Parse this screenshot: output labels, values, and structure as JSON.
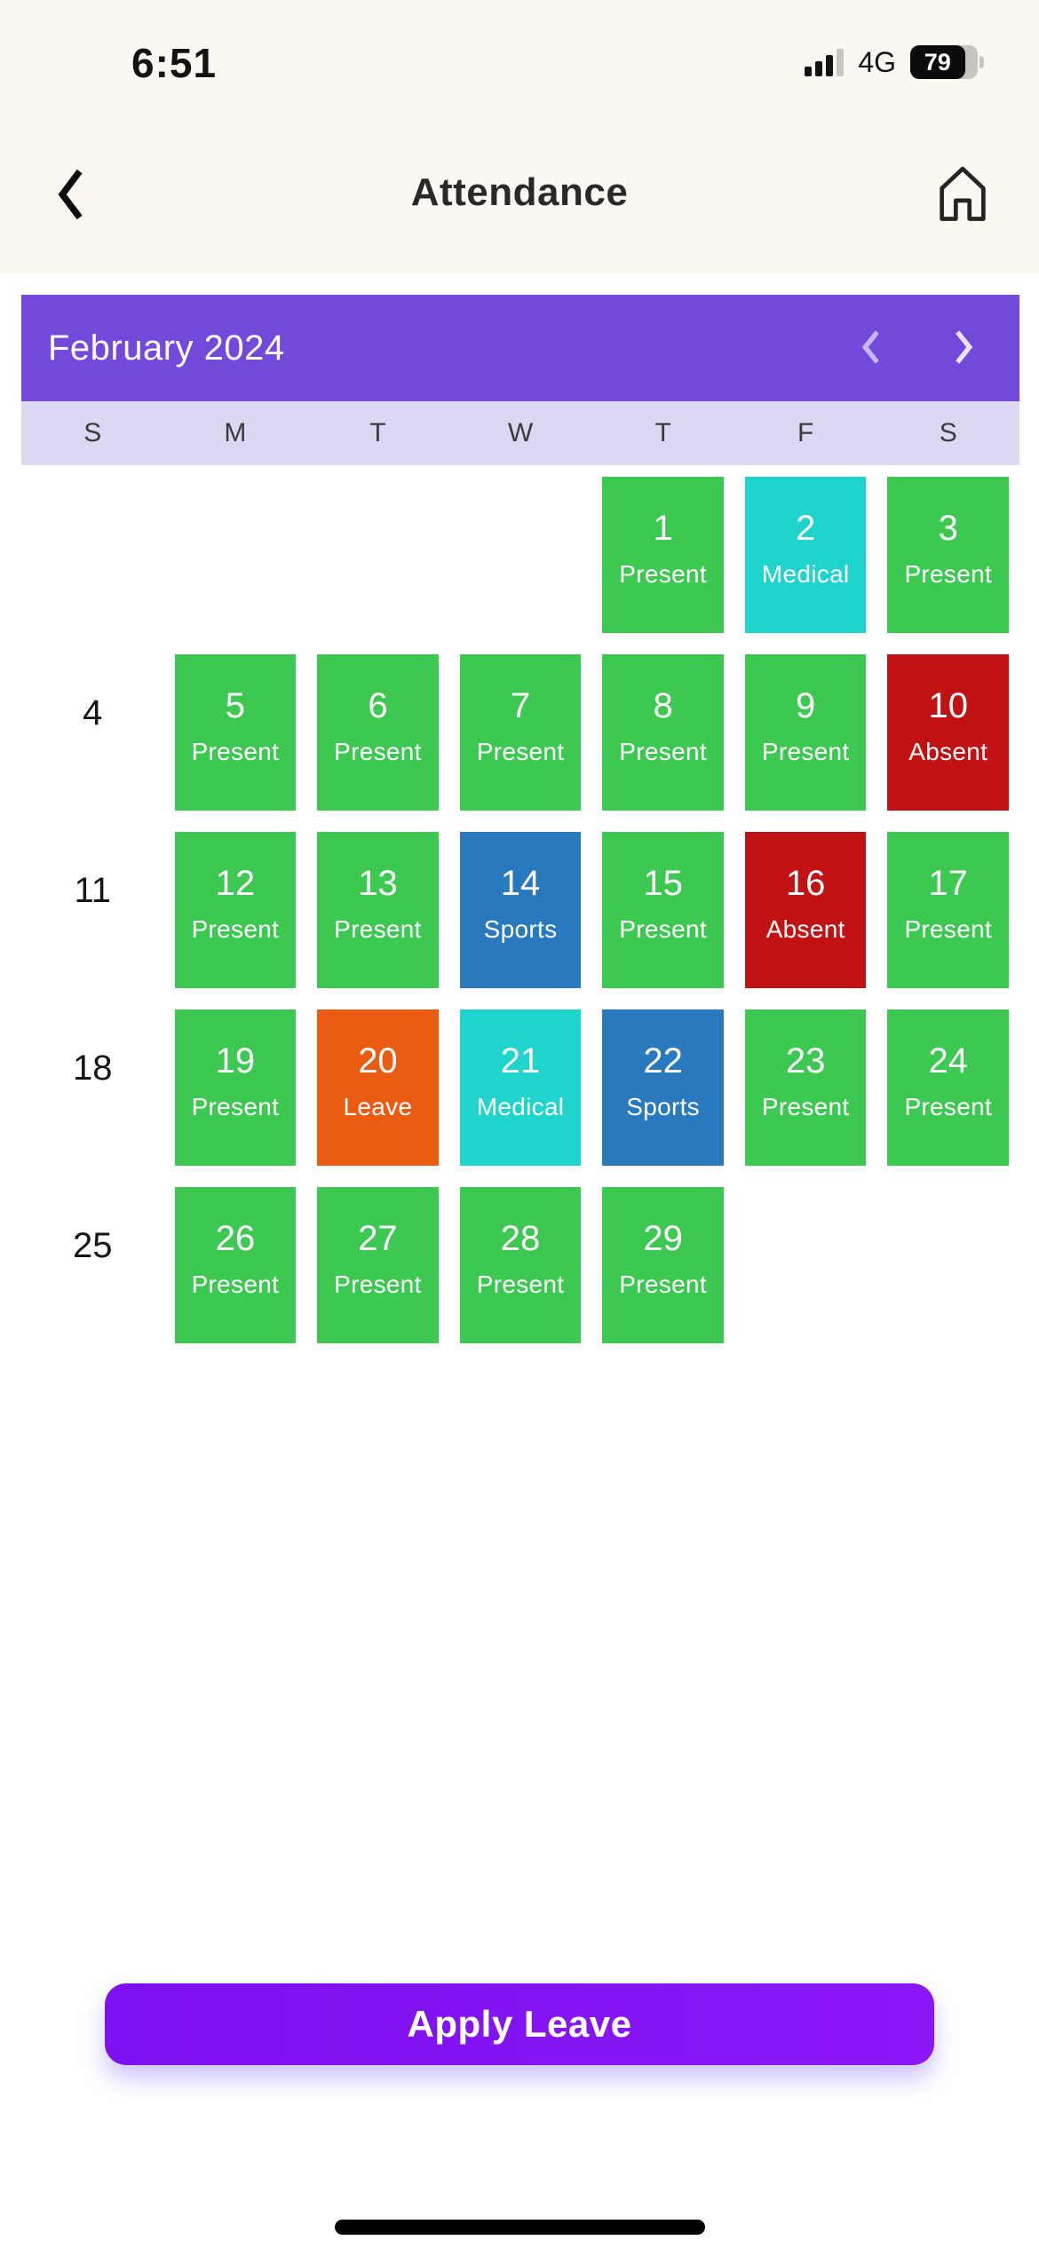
{
  "status_bar": {
    "time": "6:51",
    "network": "4G",
    "battery_percent": "79"
  },
  "header": {
    "title": "Attendance"
  },
  "calendar": {
    "month_label": "February 2024",
    "day_headers": [
      "S",
      "M",
      "T",
      "W",
      "T",
      "F",
      "S"
    ],
    "status_colors": {
      "present": "#3dc852",
      "medical": "#1fd4cd",
      "absent": "#c11112",
      "sports": "#2979be",
      "leave": "#e95c12"
    },
    "banner_color": "#7349dc",
    "dow_bg_color": "#ded7f3",
    "weeks": [
      [
        {
          "type": "empty"
        },
        {
          "type": "empty"
        },
        {
          "type": "empty"
        },
        {
          "type": "empty"
        },
        {
          "type": "day",
          "day": "1",
          "status": "Present",
          "kind": "present"
        },
        {
          "type": "day",
          "day": "2",
          "status": "Medical",
          "kind": "medical"
        },
        {
          "type": "day",
          "day": "3",
          "status": "Present",
          "kind": "present"
        }
      ],
      [
        {
          "type": "label",
          "text": "4"
        },
        {
          "type": "day",
          "day": "5",
          "status": "Present",
          "kind": "present"
        },
        {
          "type": "day",
          "day": "6",
          "status": "Present",
          "kind": "present"
        },
        {
          "type": "day",
          "day": "7",
          "status": "Present",
          "kind": "present"
        },
        {
          "type": "day",
          "day": "8",
          "status": "Present",
          "kind": "present"
        },
        {
          "type": "day",
          "day": "9",
          "status": "Present",
          "kind": "present"
        },
        {
          "type": "day",
          "day": "10",
          "status": "Absent",
          "kind": "absent"
        }
      ],
      [
        {
          "type": "label",
          "text": "11"
        },
        {
          "type": "day",
          "day": "12",
          "status": "Present",
          "kind": "present"
        },
        {
          "type": "day",
          "day": "13",
          "status": "Present",
          "kind": "present"
        },
        {
          "type": "day",
          "day": "14",
          "status": "Sports",
          "kind": "sports"
        },
        {
          "type": "day",
          "day": "15",
          "status": "Present",
          "kind": "present"
        },
        {
          "type": "day",
          "day": "16",
          "status": "Absent",
          "kind": "absent"
        },
        {
          "type": "day",
          "day": "17",
          "status": "Present",
          "kind": "present"
        }
      ],
      [
        {
          "type": "label",
          "text": "18"
        },
        {
          "type": "day",
          "day": "19",
          "status": "Present",
          "kind": "present"
        },
        {
          "type": "day",
          "day": "20",
          "status": "Leave",
          "kind": "leave"
        },
        {
          "type": "day",
          "day": "21",
          "status": "Medical",
          "kind": "medical"
        },
        {
          "type": "day",
          "day": "22",
          "status": "Sports",
          "kind": "sports"
        },
        {
          "type": "day",
          "day": "23",
          "status": "Present",
          "kind": "present"
        },
        {
          "type": "day",
          "day": "24",
          "status": "Present",
          "kind": "present"
        }
      ],
      [
        {
          "type": "label",
          "text": "25"
        },
        {
          "type": "day",
          "day": "26",
          "status": "Present",
          "kind": "present"
        },
        {
          "type": "day",
          "day": "27",
          "status": "Present",
          "kind": "present"
        },
        {
          "type": "day",
          "day": "28",
          "status": "Present",
          "kind": "present"
        },
        {
          "type": "day",
          "day": "29",
          "status": "Present",
          "kind": "present"
        },
        {
          "type": "empty"
        },
        {
          "type": "empty"
        }
      ]
    ]
  },
  "apply_button": {
    "label": "Apply Leave"
  }
}
